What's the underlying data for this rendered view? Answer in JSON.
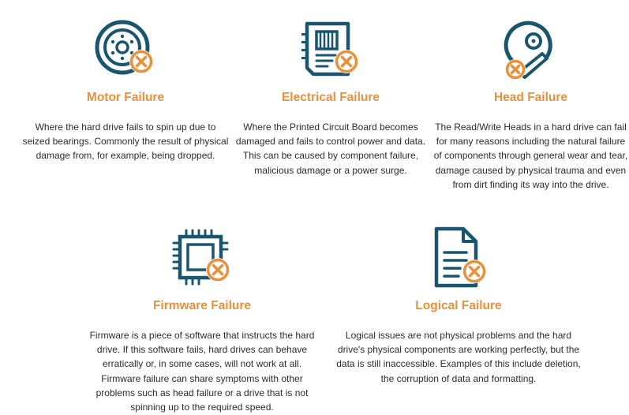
{
  "colors": {
    "icon_primary": "#1a5570",
    "icon_accent": "#e8913a",
    "heading": "#e8913a",
    "body_text": "#2b2b2b"
  },
  "failures": [
    {
      "id": "motor",
      "icon": "motor-disc-error-icon",
      "title": "Motor Failure",
      "description": "Where the hard drive fails to spin up due to seized bearings. Commonly the result of physical damage from, for example, being dropped."
    },
    {
      "id": "electrical",
      "icon": "circuit-board-error-icon",
      "title": "Electrical Failure",
      "description": "Where the Printed Circuit Board becomes damaged and fails to control power and data. This can be caused by component failure, malicious damage or a power surge."
    },
    {
      "id": "head",
      "icon": "read-write-head-error-icon",
      "title": "Head Failure",
      "description": "The Read/Write Heads in a hard drive can fail for many reasons including the natural failure of components through general wear and tear, damage caused by physical trauma and even from dirt finding its way into the drive."
    },
    {
      "id": "firmware",
      "icon": "microchip-error-icon",
      "title": "Firmware Failure",
      "description": "Firmware is a piece of software that instructs the hard drive. If this software fails, hard drives can behave erratically or, in some cases, will not work at all. Firmware failure can share symptoms with other problems such as head failure or a drive that is not spinning up to the required speed."
    },
    {
      "id": "logical",
      "icon": "document-error-icon",
      "title": "Logical Failure",
      "description": "Logical issues are not physical problems and the hard drive's physical components are working perfectly, but the data is still inaccessible. Examples of this include deletion, the corruption of data and formatting."
    }
  ]
}
